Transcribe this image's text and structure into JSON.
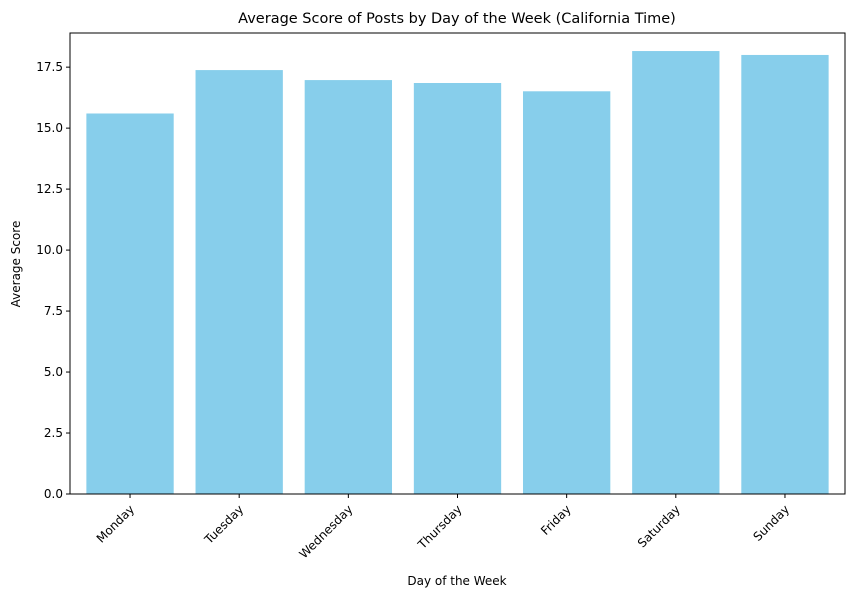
{
  "chart_data": {
    "type": "bar",
    "title": "Average Score of Posts by Day of the Week (California Time)",
    "xlabel": "Day of the Week",
    "ylabel": "Average Score",
    "categories": [
      "Monday",
      "Tuesday",
      "Wednesday",
      "Thursday",
      "Friday",
      "Saturday",
      "Sunday"
    ],
    "values": [
      15.6,
      17.38,
      16.97,
      16.85,
      16.51,
      18.16,
      18.0
    ],
    "ylim": [
      0,
      18.9
    ],
    "yticks": [
      "0.0",
      "2.5",
      "5.0",
      "7.5",
      "10.0",
      "12.5",
      "15.0",
      "17.5"
    ],
    "bar_color": "#87ceeb",
    "grid": false,
    "legend": "none"
  }
}
